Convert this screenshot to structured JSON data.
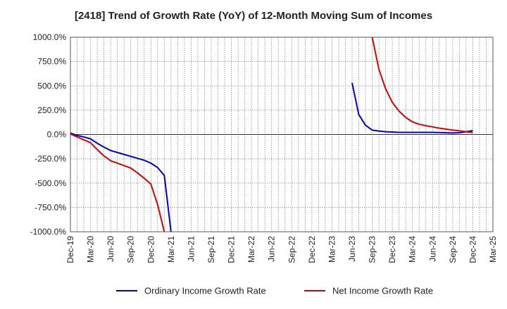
{
  "chart_data": {
    "type": "line",
    "title": "[2418]  Trend of Growth Rate (YoY) of 12-Month Moving Sum of Incomes",
    "xlabel": "",
    "ylabel": "",
    "ylim": [
      -1000,
      1000
    ],
    "yticks": [
      1000,
      750,
      500,
      250,
      0,
      -250,
      -500,
      -750,
      -1000
    ],
    "ytick_labels": [
      "1000.0%",
      "750.0%",
      "500.0%",
      "250.0%",
      "0.0%",
      "-250.0%",
      "-500.0%",
      "-750.0%",
      "-1000.0%"
    ],
    "x_start": "2019-12",
    "x_end": "2025-03",
    "xtick_labels": [
      "Dec-19",
      "Mar-20",
      "Jun-20",
      "Sep-20",
      "Dec-20",
      "Mar-21",
      "Jun-21",
      "Sep-21",
      "Dec-21",
      "Mar-22",
      "Jun-22",
      "Sep-22",
      "Dec-22",
      "Mar-23",
      "Jun-23",
      "Sep-23",
      "Dec-23",
      "Mar-24",
      "Jun-24",
      "Sep-24",
      "Dec-24",
      "Mar-25"
    ],
    "grid": true,
    "legend_position": "bottom",
    "series": [
      {
        "name": "Ordinary Income Growth Rate",
        "color": "#0000cc",
        "points": [
          [
            "2019-12",
            15
          ],
          [
            "2020-01",
            -10
          ],
          [
            "2020-02",
            -25
          ],
          [
            "2020-03",
            -45
          ],
          [
            "2020-04",
            -90
          ],
          [
            "2020-05",
            -130
          ],
          [
            "2020-06",
            -165
          ],
          [
            "2020-07",
            -185
          ],
          [
            "2020-08",
            -205
          ],
          [
            "2020-09",
            -225
          ],
          [
            "2020-10",
            -245
          ],
          [
            "2020-11",
            -265
          ],
          [
            "2020-12",
            -295
          ],
          [
            "2021-01",
            -340
          ],
          [
            "2021-02",
            -420
          ],
          [
            "2021-03",
            -1000
          ]
        ]
      },
      {
        "name": "Ordinary Income Growth Rate",
        "color": "#0000cc",
        "points": [
          [
            "2023-06",
            530
          ],
          [
            "2023-07",
            205
          ],
          [
            "2023-08",
            95
          ],
          [
            "2023-09",
            45
          ],
          [
            "2023-10",
            35
          ],
          [
            "2023-11",
            28
          ],
          [
            "2023-12",
            25
          ],
          [
            "2024-01",
            22
          ],
          [
            "2024-02",
            22
          ],
          [
            "2024-03",
            22
          ],
          [
            "2024-04",
            22
          ],
          [
            "2024-05",
            22
          ],
          [
            "2024-06",
            22
          ],
          [
            "2024-07",
            20
          ],
          [
            "2024-08",
            18
          ],
          [
            "2024-09",
            15
          ],
          [
            "2024-10",
            18
          ],
          [
            "2024-11",
            28
          ],
          [
            "2024-12",
            40
          ]
        ]
      },
      {
        "name": "Net Income Growth Rate",
        "color": "#dd0000",
        "points": [
          [
            "2019-12",
            5
          ],
          [
            "2020-01",
            -25
          ],
          [
            "2020-02",
            -55
          ],
          [
            "2020-03",
            -85
          ],
          [
            "2020-04",
            -155
          ],
          [
            "2020-05",
            -220
          ],
          [
            "2020-06",
            -270
          ],
          [
            "2020-07",
            -295
          ],
          [
            "2020-08",
            -320
          ],
          [
            "2020-09",
            -345
          ],
          [
            "2020-10",
            -395
          ],
          [
            "2020-11",
            -450
          ],
          [
            "2020-12",
            -510
          ],
          [
            "2021-01",
            -720
          ],
          [
            "2021-02",
            -1000
          ]
        ]
      },
      {
        "name": "Net Income Growth Rate",
        "color": "#dd0000",
        "points": [
          [
            "2023-09",
            1000
          ],
          [
            "2023-10",
            670
          ],
          [
            "2023-11",
            470
          ],
          [
            "2023-12",
            330
          ],
          [
            "2024-01",
            240
          ],
          [
            "2024-02",
            175
          ],
          [
            "2024-03",
            130
          ],
          [
            "2024-04",
            105
          ],
          [
            "2024-05",
            90
          ],
          [
            "2024-06",
            78
          ],
          [
            "2024-07",
            65
          ],
          [
            "2024-08",
            55
          ],
          [
            "2024-09",
            45
          ],
          [
            "2024-10",
            38
          ],
          [
            "2024-11",
            28
          ],
          [
            "2024-12",
            20
          ]
        ]
      }
    ],
    "legend": [
      {
        "name": "Ordinary Income Growth Rate",
        "color": "#0000cc"
      },
      {
        "name": "Net Income Growth Rate",
        "color": "#dd0000"
      }
    ]
  }
}
